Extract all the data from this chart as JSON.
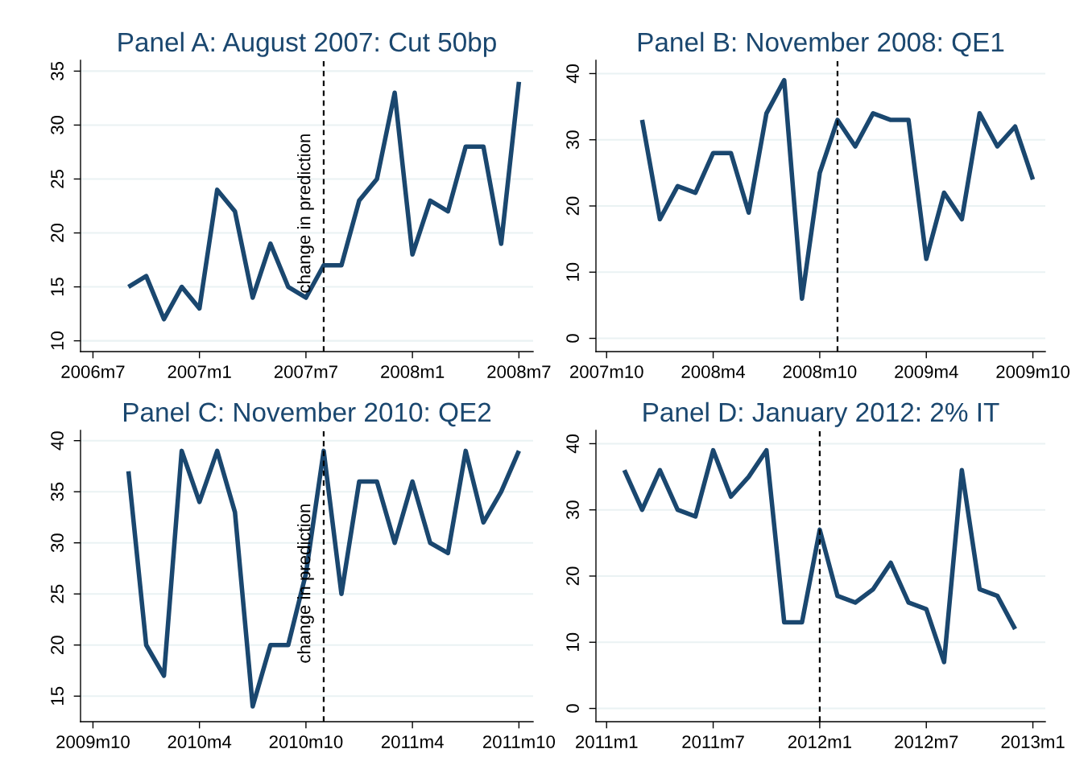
{
  "chart_data": [
    {
      "type": "line",
      "title": "Panel A: August 2007: Cut 50bp",
      "x": [
        "2006-09",
        "2006-10",
        "2006-11",
        "2006-12",
        "2007-01",
        "2007-02",
        "2007-03",
        "2007-04",
        "2007-05",
        "2007-06",
        "2007-07",
        "2007-08",
        "2007-09",
        "2007-10",
        "2007-11",
        "2007-12",
        "2008-01",
        "2008-02",
        "2008-03",
        "2008-04",
        "2008-05",
        "2008-06",
        "2008-07"
      ],
      "series": [
        {
          "color": "#1a476f",
          "values": [
            15,
            16,
            12,
            15,
            13,
            24,
            22,
            14,
            19,
            15,
            14,
            17,
            17,
            23,
            25,
            33,
            18,
            23,
            22,
            28,
            28,
            19,
            34
          ]
        }
      ],
      "xlim": [
        "2006-06-10",
        "2008-07-25"
      ],
      "xticks": [
        {
          "value": "2006-07",
          "label": "2006m7"
        },
        {
          "value": "2007-01",
          "label": "2007m1"
        },
        {
          "value": "2007-07",
          "label": "2007m7"
        },
        {
          "value": "2008-01",
          "label": "2008m1"
        },
        {
          "value": "2008-07",
          "label": "2008m7"
        }
      ],
      "ylim": [
        9,
        36
      ],
      "yticks": [
        10,
        15,
        20,
        25,
        30,
        35
      ],
      "grid": "y",
      "marker": "none",
      "line_style": "solid",
      "ref_lines": [
        {
          "axis": "x",
          "value": "2007-08",
          "label": "change in prediction",
          "color": "#000000",
          "line_style": "dashed"
        }
      ]
    },
    {
      "type": "line",
      "title": "Panel B: November 2008: QE1",
      "x": [
        "2007-12",
        "2008-01",
        "2008-02",
        "2008-03",
        "2008-04",
        "2008-05",
        "2008-06",
        "2008-07",
        "2008-08",
        "2008-09",
        "2008-10",
        "2008-11",
        "2008-12",
        "2009-01",
        "2009-02",
        "2009-03",
        "2009-04",
        "2009-05",
        "2009-06",
        "2009-07",
        "2009-08",
        "2009-09",
        "2009-10"
      ],
      "series": [
        {
          "color": "#1a476f",
          "values": [
            33,
            18,
            23,
            22,
            28,
            28,
            19,
            34,
            39,
            6,
            25,
            33,
            29,
            34,
            33,
            33,
            12,
            22,
            18,
            34,
            29,
            32,
            24
          ]
        }
      ],
      "xlim": [
        "2007-09-13",
        "2009-10-22"
      ],
      "xticks": [
        {
          "value": "2007-10",
          "label": "2007m10"
        },
        {
          "value": "2008-04",
          "label": "2008m4"
        },
        {
          "value": "2008-10",
          "label": "2008m10"
        },
        {
          "value": "2009-04",
          "label": "2009m4"
        },
        {
          "value": "2009-10",
          "label": "2009m10"
        }
      ],
      "ylim": [
        -2,
        42
      ],
      "yticks": [
        0,
        10,
        20,
        30,
        40
      ],
      "grid": "y",
      "marker": "none",
      "line_style": "solid",
      "ref_lines": [
        {
          "axis": "x",
          "value": "2008-11",
          "color": "#000000",
          "line_style": "dashed"
        }
      ]
    },
    {
      "type": "line",
      "title": "Panel C: November 2010: QE2",
      "x": [
        "2009-12",
        "2010-01",
        "2010-02",
        "2010-03",
        "2010-04",
        "2010-05",
        "2010-06",
        "2010-07",
        "2010-08",
        "2010-09",
        "2010-10",
        "2010-11",
        "2010-12",
        "2011-01",
        "2011-02",
        "2011-03",
        "2011-04",
        "2011-05",
        "2011-06",
        "2011-07",
        "2011-08",
        "2011-09",
        "2011-10"
      ],
      "series": [
        {
          "color": "#1a476f",
          "values": [
            37,
            20,
            17,
            39,
            34,
            39,
            33,
            14,
            20,
            20,
            27,
            39,
            25,
            36,
            36,
            30,
            36,
            30,
            29,
            39,
            32,
            35,
            39
          ]
        }
      ],
      "xlim": [
        "2009-09-10",
        "2011-10-25"
      ],
      "xticks": [
        {
          "value": "2009-10",
          "label": "2009m10"
        },
        {
          "value": "2010-04",
          "label": "2010m4"
        },
        {
          "value": "2010-10",
          "label": "2010m10"
        },
        {
          "value": "2011-04",
          "label": "2011m4"
        },
        {
          "value": "2011-10",
          "label": "2011m10"
        }
      ],
      "ylim": [
        12.5,
        41
      ],
      "yticks": [
        15,
        20,
        25,
        30,
        35,
        40
      ],
      "grid": "y",
      "marker": "none",
      "line_style": "solid",
      "ref_lines": [
        {
          "axis": "x",
          "value": "2010-11",
          "label": "change in prediction",
          "color": "#000000",
          "line_style": "dashed"
        }
      ]
    },
    {
      "type": "line",
      "title": "Panel D: January 2012: 2% IT",
      "x": [
        "2011-02",
        "2011-03",
        "2011-04",
        "2011-05",
        "2011-06",
        "2011-07",
        "2011-08",
        "2011-09",
        "2011-10",
        "2011-11",
        "2011-12",
        "2012-01",
        "2012-02",
        "2012-03",
        "2012-04",
        "2012-05",
        "2012-06",
        "2012-07",
        "2012-08",
        "2012-09",
        "2012-10",
        "2012-11",
        "2012-12"
      ],
      "series": [
        {
          "color": "#1a476f",
          "values": [
            36,
            30,
            36,
            30,
            29,
            39,
            32,
            35,
            39,
            13,
            13,
            27,
            17,
            16,
            18,
            22,
            16,
            15,
            7,
            36,
            18,
            17,
            12
          ]
        }
      ],
      "xlim": [
        "2010-12-13",
        "2013-01-22"
      ],
      "xticks": [
        {
          "value": "2011-01",
          "label": "2011m1"
        },
        {
          "value": "2011-07",
          "label": "2011m7"
        },
        {
          "value": "2012-01",
          "label": "2012m1"
        },
        {
          "value": "2012-07",
          "label": "2012m7"
        },
        {
          "value": "2013-01",
          "label": "2013m1"
        }
      ],
      "ylim": [
        -2,
        42
      ],
      "yticks": [
        0,
        10,
        20,
        30,
        40
      ],
      "grid": "y",
      "marker": "none",
      "line_style": "solid",
      "ref_lines": [
        {
          "axis": "x",
          "value": "2012-01",
          "color": "#000000",
          "line_style": "dashed"
        }
      ]
    }
  ]
}
